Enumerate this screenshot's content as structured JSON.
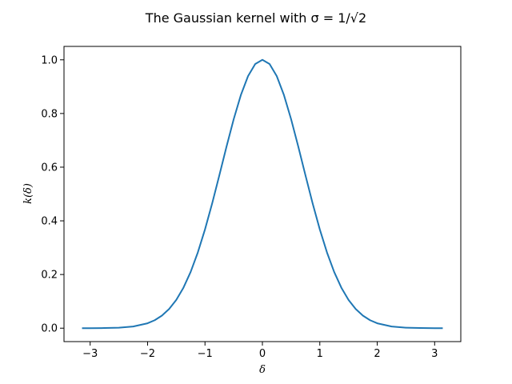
{
  "chart_data": {
    "type": "line",
    "title": "The Gaussian kernel with σ = 1/√2",
    "xlabel": "δ",
    "ylabel": "k(δ)",
    "xlim": [
      -3.4557,
      3.4557
    ],
    "ylim": [
      -0.05,
      1.05
    ],
    "x_ticks": [
      -3,
      -2,
      -1,
      0,
      1,
      2,
      3
    ],
    "x_tick_labels": [
      "−3",
      "−2",
      "−1",
      "0",
      "1",
      "2",
      "3"
    ],
    "y_ticks": [
      0.0,
      0.2,
      0.4,
      0.6,
      0.8,
      1.0
    ],
    "y_tick_labels": [
      "0.0",
      "0.2",
      "0.4",
      "0.6",
      "0.8",
      "1.0"
    ],
    "grid": false,
    "legend": null,
    "series": [
      {
        "color": "#1f77b4",
        "x": [
          -3.1416,
          -3.0,
          -2.75,
          -2.5,
          -2.25,
          -2.0,
          -1.875,
          -1.75,
          -1.625,
          -1.5,
          -1.375,
          -1.25,
          -1.125,
          -1.0,
          -0.875,
          -0.75,
          -0.625,
          -0.5,
          -0.375,
          -0.25,
          -0.125,
          0.0,
          0.125,
          0.25,
          0.375,
          0.5,
          0.625,
          0.75,
          0.875,
          1.0,
          1.125,
          1.25,
          1.375,
          1.5,
          1.625,
          1.75,
          1.875,
          2.0,
          2.25,
          2.5,
          2.75,
          3.0,
          3.1416
        ],
        "y": [
          0.0001,
          0.0001,
          0.0005,
          0.0019,
          0.0063,
          0.0183,
          0.0297,
          0.0468,
          0.0714,
          0.1054,
          0.151,
          0.2096,
          0.2821,
          0.3679,
          0.465,
          0.5698,
          0.6766,
          0.7788,
          0.8688,
          0.9394,
          0.9845,
          1.0,
          0.9845,
          0.9394,
          0.8688,
          0.7788,
          0.6766,
          0.5698,
          0.465,
          0.3679,
          0.2821,
          0.2096,
          0.151,
          0.1054,
          0.0714,
          0.0468,
          0.0297,
          0.0183,
          0.0063,
          0.0019,
          0.0005,
          0.0001,
          0.0001
        ]
      }
    ]
  }
}
